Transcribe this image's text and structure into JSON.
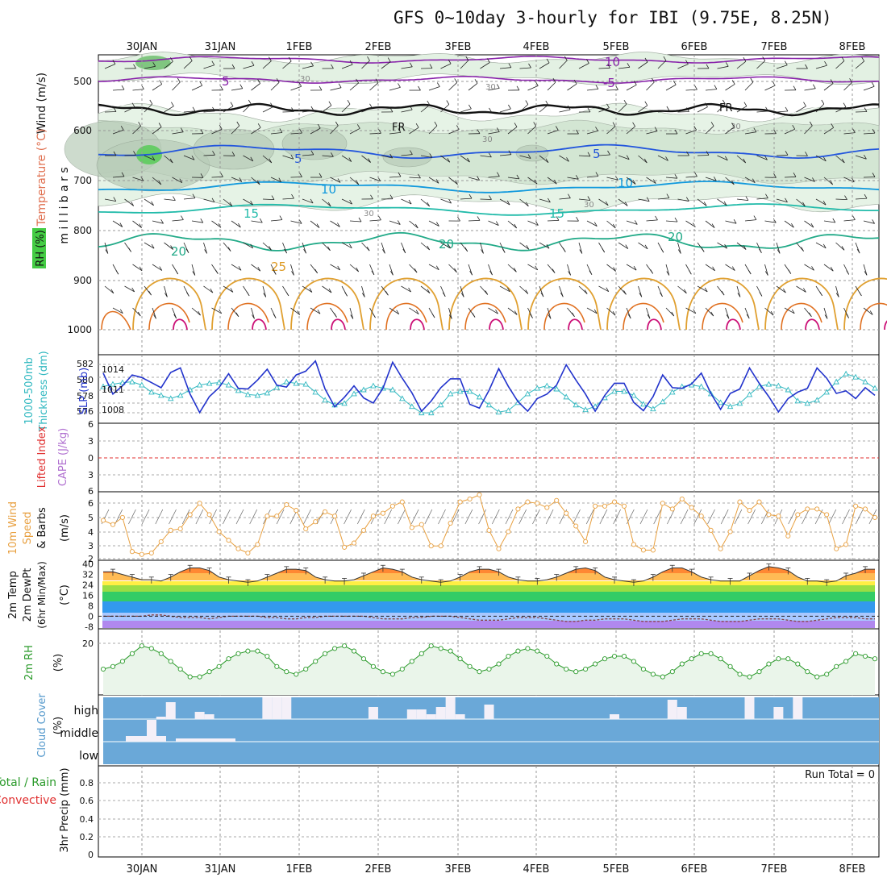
{
  "title": "GFS 0~10day 3-hourly for IBI (9.75E, 8.25N)",
  "days": [
    "30JAN",
    "31JAN",
    "1FEB",
    "2FEB",
    "3FEB",
    "4FEB",
    "5FEB",
    "6FEB",
    "7FEB",
    "8FEB"
  ],
  "colors": {
    "wind_speed": "#e8a040",
    "rh": "#2a9a2a",
    "slp": "#2233cc",
    "thickness": "#30b8c0",
    "cape": "#b070d0",
    "lifted": "#e03030",
    "cloud_bg": "#6aa8d8",
    "cloud_bar": "#f4f0f8",
    "precip_total": "#2a9a2a",
    "precip_conv": "#e03030"
  },
  "panels": {
    "upper": {
      "label_wind": "Wind (m/s)",
      "label_temp": "Temperature (°C)",
      "label_rh": "RH (%)",
      "label_mb": "m i l l i b a r s",
      "yticks": [
        "500",
        "600",
        "700",
        "800",
        "900",
        "1000"
      ],
      "contour_labels": {
        "t_10": "10",
        "t_5": "5",
        "t_neg5": "-5",
        "t_fr": "FR",
        "t_15": "15",
        "t_20": "20",
        "t_25": "25",
        "rh_30": "30"
      }
    },
    "slp": {
      "label_thick": "1000-500mb Thickness (dm)",
      "label_slp": "SLP (mb)",
      "left_ticks": [
        "582",
        "580",
        "578",
        "576"
      ],
      "right_ticks": [
        "1014",
        "1011",
        "1008"
      ]
    },
    "cape": {
      "label_li": "Lifted Index",
      "label_cape": "CAPE (J/kg)",
      "yticks": [
        "6",
        "3",
        "0",
        "3",
        "6"
      ]
    },
    "wind10": {
      "label": "10m Wind Speed & Barbs",
      "label_unit": "(m/s)",
      "yticks": [
        "6",
        "5",
        "4",
        "3",
        "2"
      ]
    },
    "temp": {
      "label": "2m Temp",
      "label2": "2m DewPt",
      "label3": "(6hr Min/Max)",
      "label_unit": "(°C)",
      "yticks": [
        "40",
        "32",
        "24",
        "16",
        "8",
        "0",
        "-8"
      ]
    },
    "rh2m": {
      "label": "2m RH",
      "label_unit": "(%)",
      "ytick": "20"
    },
    "cloud": {
      "label": "Cloud Cover",
      "label_unit": "(%)",
      "levels": [
        "high",
        "middle",
        "low"
      ]
    },
    "precip": {
      "label": "3hr Precip (mm)",
      "label_total": "Total / Rain",
      "label_conv": "Convective",
      "run_total": "Run Total = 0",
      "yticks": [
        "0.8",
        "0.6",
        "0.4",
        "0.2",
        "0"
      ]
    }
  },
  "chart_data": [
    {
      "type": "line",
      "name": "slp",
      "ylabel": "SLP (mb)",
      "ylim": [
        1006,
        1016
      ],
      "values": [
        1013.5,
        1010.2,
        1011.5,
        1013.2,
        1012.8,
        1012.0,
        1011.2,
        1013.6,
        1014.3,
        1010.2,
        1007.3,
        1009.8,
        1011.2,
        1013.4,
        1011.1,
        1011.0,
        1012.4,
        1014.1,
        1011.6,
        1011.3,
        1013.2,
        1013.8,
        1015.4,
        1011.0,
        1008.2,
        1009.7,
        1011.5,
        1009.6,
        1008.8,
        1011.1,
        1015.2,
        1012.7,
        1010.4,
        1007.5,
        1009.1,
        1011.2,
        1012.6,
        1012.6,
        1008.6,
        1008.0,
        1010.8,
        1014.2,
        1011.4,
        1009.0,
        1007.5,
        1009.5,
        1010.2,
        1011.6,
        1014.8,
        1012.4,
        1010.2,
        1007.5,
        1010.0,
        1011.9,
        1011.9,
        1008.9,
        1007.6,
        1009.8,
        1013.2,
        1011.2,
        1011.1,
        1011.8,
        1013.5,
        1010.3,
        1007.8,
        1010.3,
        1011.0,
        1014.3,
        1011.9,
        1009.8,
        1007.4,
        1009.5,
        1010.5,
        1011.1,
        1014.3,
        1012.7,
        1010.3,
        1010.7,
        1009.5,
        1011.2,
        1010.0
      ]
    },
    {
      "type": "line",
      "name": "thickness",
      "ylabel": "1000-500mb Thickness (dm)",
      "ylim": [
        575,
        583
      ],
      "values": [
        579.3,
        579.6,
        579.8,
        579.9,
        579.5,
        578.6,
        578.2,
        577.8,
        578.2,
        578.9,
        579.5,
        579.7,
        579.8,
        579.5,
        578.8,
        578.3,
        578.2,
        578.5,
        579.2,
        579.9,
        579.7,
        579.6,
        578.6,
        577.6,
        577.0,
        577.2,
        578.4,
        578.9,
        579.4,
        579.1,
        578.9,
        577.8,
        576.8,
        576.0,
        576.0,
        577.0,
        578.4,
        578.7,
        578.7,
        578.0,
        577.0,
        576.1,
        576.3,
        577.3,
        578.4,
        579.1,
        579.4,
        579.0,
        578.0,
        577.0,
        576.4,
        576.8,
        577.9,
        578.7,
        578.7,
        578.2,
        577.1,
        576.5,
        577.4,
        578.6,
        579.3,
        579.5,
        579.3,
        578.4,
        577.3,
        576.8,
        577.2,
        578.3,
        579.3,
        579.6,
        579.4,
        578.9,
        577.5,
        577.2,
        577.6,
        578.6,
        579.9,
        580.9,
        580.5,
        579.9,
        579.1
      ]
    },
    {
      "type": "line",
      "name": "wind10m_speed",
      "ylabel": "(m/s)",
      "ylim": [
        2,
        6.6
      ],
      "values": [
        4.7,
        4.4,
        4.9,
        2.5,
        2.3,
        2.4,
        3.2,
        4.0,
        4.1,
        5.1,
        5.9,
        5.1,
        3.9,
        3.3,
        2.7,
        2.4,
        3.0,
        5.0,
        5.0,
        5.8,
        5.4,
        4.1,
        4.6,
        5.3,
        5.0,
        2.8,
        3.1,
        4.0,
        5.0,
        5.2,
        5.7,
        6.0,
        4.2,
        4.4,
        2.9,
        2.9,
        4.5,
        6.0,
        6.2,
        6.5,
        4.0,
        2.7,
        3.9,
        5.5,
        6.0,
        5.9,
        5.6,
        6.1,
        5.2,
        4.3,
        3.2,
        5.7,
        5.7,
        6.0,
        5.7,
        3.0,
        2.6,
        2.6,
        5.9,
        5.5,
        6.2,
        5.6,
        5.0,
        4.0,
        2.7,
        3.9,
        6.0,
        5.4,
        6.0,
        5.1,
        5.0,
        3.6,
        5.1,
        5.5,
        5.5,
        5.1,
        2.7,
        3.0,
        5.7,
        5.5,
        4.9
      ]
    },
    {
      "type": "line",
      "name": "rh2m",
      "ylabel": "(%)",
      "values": [
        10,
        11,
        13,
        16,
        19,
        18,
        16,
        13,
        10,
        7,
        7,
        9,
        11,
        14,
        16,
        17,
        17,
        15,
        11,
        9,
        8,
        10,
        13,
        16,
        18,
        19,
        17,
        14,
        11,
        9,
        8,
        10,
        13,
        16,
        19,
        18,
        17,
        14,
        11,
        9,
        10,
        12,
        15,
        17,
        18,
        17,
        15,
        12,
        10,
        9,
        10,
        12,
        14,
        15,
        15,
        13,
        10,
        8,
        7,
        9,
        12,
        14,
        16,
        16,
        14,
        11,
        8,
        7,
        9,
        12,
        14,
        14,
        12,
        9,
        7,
        8,
        11,
        13,
        16,
        15,
        14
      ]
    },
    {
      "type": "area",
      "name": "temp2m",
      "ylabel": "(°C)",
      "ylim": [
        -9,
        41
      ],
      "values": [
        34,
        34,
        32,
        30,
        28,
        28,
        27,
        30,
        34,
        37,
        37,
        35,
        30,
        28,
        27,
        26,
        27,
        30,
        33,
        36,
        36,
        35,
        30,
        28,
        27,
        27,
        28,
        31,
        34,
        37,
        36,
        34,
        30,
        28,
        27,
        26,
        27,
        30,
        34,
        36,
        36,
        34,
        30,
        28,
        27,
        27,
        28,
        30,
        33,
        36,
        37,
        35,
        30,
        28,
        27,
        26,
        27,
        30,
        34,
        37,
        37,
        34,
        30,
        28,
        27,
        27,
        27,
        31,
        35,
        38,
        37,
        35,
        30,
        27,
        27,
        26,
        27,
        31,
        33,
        36,
        36
      ]
    },
    {
      "type": "line",
      "name": "dewpt2m",
      "ylabel": "(°C)",
      "values": [
        0,
        0,
        0,
        0,
        0,
        1,
        1,
        0,
        -1,
        -1,
        -1,
        -2,
        -1,
        0,
        0,
        0,
        0,
        -1,
        -1,
        -2,
        -2,
        -1,
        -1,
        0,
        0,
        0,
        0,
        0,
        -1,
        -2,
        -2,
        -2,
        -1,
        -1,
        0,
        0,
        0,
        -1,
        -2,
        -3,
        -3,
        -3,
        -2,
        -1,
        -1,
        -1,
        -2,
        -3,
        -4,
        -4,
        -3,
        -3,
        -2,
        -2,
        -2,
        -3,
        -4,
        -4,
        -4,
        -3,
        -2,
        -2,
        -2,
        -3,
        -4,
        -4,
        -4,
        -3,
        -2,
        -2,
        -2,
        -3,
        -4,
        -4,
        -3,
        -2,
        -1,
        -1,
        -1,
        -2,
        -2
      ]
    },
    {
      "type": "bar",
      "name": "cloud_high",
      "ylabel": "(%)",
      "values": [
        0,
        0,
        0,
        0,
        0,
        0,
        5,
        35,
        0,
        0,
        15,
        10,
        0,
        0,
        0,
        0,
        0,
        45,
        45,
        45,
        0,
        0,
        0,
        0,
        0,
        0,
        0,
        0,
        25,
        0,
        0,
        0,
        20,
        20,
        10,
        25,
        45,
        10,
        0,
        0,
        30,
        0,
        0,
        0,
        0,
        0,
        0,
        0,
        0,
        0,
        0,
        0,
        0,
        10,
        0,
        0,
        0,
        0,
        0,
        40,
        25,
        0,
        0,
        0,
        0,
        0,
        0,
        45,
        0,
        0,
        25,
        0,
        45,
        0,
        0,
        0,
        0,
        0,
        0,
        0,
        0
      ]
    },
    {
      "type": "bar",
      "name": "precip",
      "ylabel": "3hr Precip (mm)",
      "ylim": [
        0,
        1
      ],
      "values": [
        0
      ]
    }
  ]
}
